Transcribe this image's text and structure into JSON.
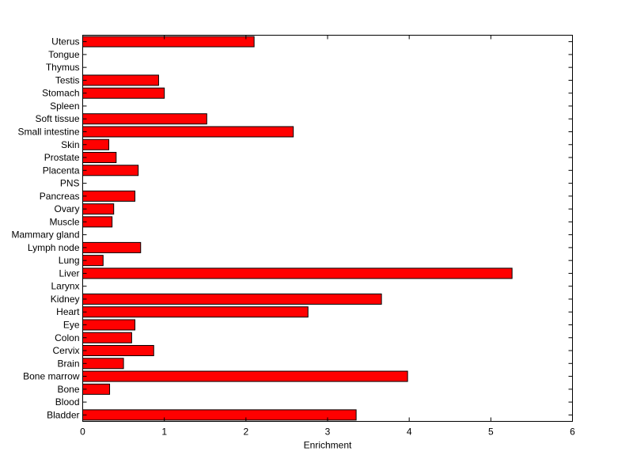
{
  "chart_data": {
    "type": "bar",
    "orientation": "horizontal",
    "title": "",
    "xlabel": "Enrichment",
    "ylabel": "",
    "xlim": [
      0,
      6
    ],
    "xticks": [
      "0",
      "1",
      "2",
      "3",
      "4",
      "5",
      "6"
    ],
    "grid": false,
    "legend": "none",
    "colors": {
      "bar": "#ff0000",
      "bar_edge": "#000000",
      "axes": "#000000",
      "background": "#ffffff"
    },
    "categories": [
      "Uterus",
      "Tongue",
      "Thymus",
      "Testis",
      "Stomach",
      "Spleen",
      "Soft tissue",
      "Small intestine",
      "Skin",
      "Prostate",
      "Placenta",
      "PNS",
      "Pancreas",
      "Ovary",
      "Muscle",
      "Mammary gland",
      "Lymph node",
      "Lung",
      "Liver",
      "Larynx",
      "Kidney",
      "Heart",
      "Eye",
      "Colon",
      "Cervix",
      "Brain",
      "Bone marrow",
      "Bone",
      "Blood",
      "Bladder"
    ],
    "values": [
      2.1,
      0,
      0,
      0.93,
      1.0,
      0,
      1.52,
      2.58,
      0.32,
      0.41,
      0.68,
      0,
      0.64,
      0.38,
      0.36,
      0,
      0.71,
      0.25,
      5.26,
      0,
      3.66,
      2.76,
      0.64,
      0.6,
      0.87,
      0.5,
      3.98,
      0.33,
      0,
      3.35
    ]
  }
}
